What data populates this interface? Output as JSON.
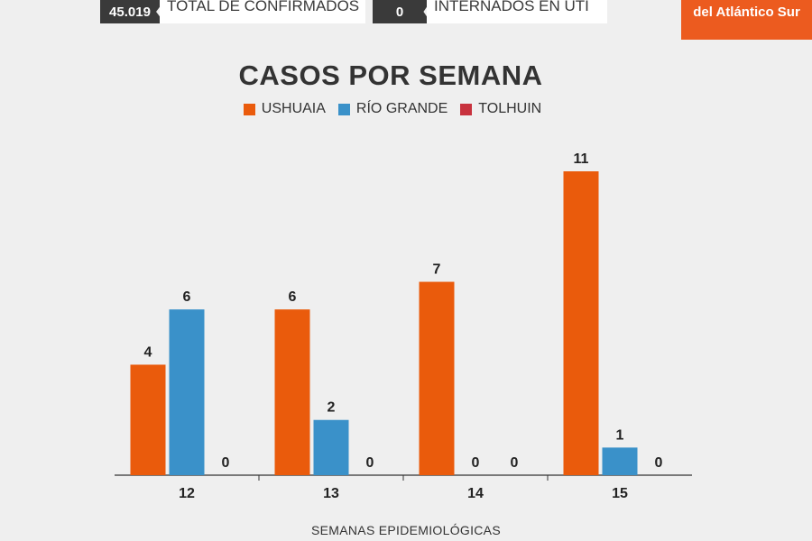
{
  "header": {
    "stat_confirmed": {
      "value": "45.019",
      "label": "TOTAL DE CONFIRMADOS"
    },
    "stat_uti": {
      "value": "0",
      "label": "INTERNADOS EN UTI"
    },
    "brand": "del Atlántico Sur"
  },
  "chart_data": {
    "type": "bar",
    "title": "CASOS POR SEMANA",
    "xlabel": "SEMANAS EPIDEMIOLÓGICAS",
    "ylabel": "",
    "categories": [
      "12",
      "13",
      "14",
      "15"
    ],
    "series": [
      {
        "name": "USHUAIA",
        "color": "#ea5b0c",
        "values": [
          4,
          6,
          7,
          11
        ]
      },
      {
        "name": "RÍO GRANDE",
        "color": "#3a91c9",
        "values": [
          6,
          2,
          0,
          1
        ]
      },
      {
        "name": "TOLHUIN",
        "color": "#c8323e",
        "values": [
          0,
          0,
          0,
          0
        ]
      }
    ],
    "ylim": [
      0,
      11
    ],
    "grid": false,
    "legend_position": "top"
  }
}
